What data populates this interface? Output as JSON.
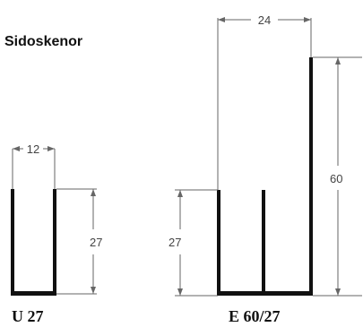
{
  "title": "Sidoskenor",
  "profiles": {
    "u": {
      "label": "U 27",
      "width_dim": "12",
      "height_dim": "27"
    },
    "e": {
      "label": "E 60/27",
      "width_dim": "24",
      "height_low_dim": "27",
      "height_high_dim": "60"
    }
  }
}
